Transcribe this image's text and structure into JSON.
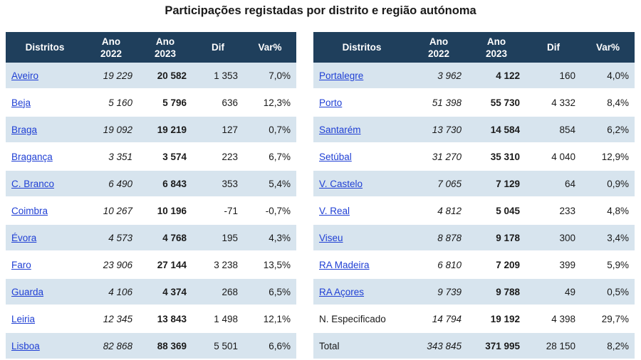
{
  "title": "Participações registadas por distrito e região autónoma",
  "headers": {
    "district": "Distritos",
    "y2022_a": "Ano",
    "y2022_b": "2022",
    "y2023_a": "Ano",
    "y2023_b": "2023",
    "dif": "Dif",
    "var": "Var%"
  },
  "left_rows": [
    {
      "name": "Aveiro",
      "y2022": "19 229",
      "y2023": "20 582",
      "dif": "1 353",
      "var": "7,0%"
    },
    {
      "name": "Beja",
      "y2022": "5 160",
      "y2023": "5 796",
      "dif": "636",
      "var": "12,3%"
    },
    {
      "name": "Braga",
      "y2022": "19 092",
      "y2023": "19 219",
      "dif": "127",
      "var": "0,7%"
    },
    {
      "name": "Bragança",
      "y2022": "3 351",
      "y2023": "3 574",
      "dif": "223",
      "var": "6,7%"
    },
    {
      "name": "C. Branco",
      "y2022": "6 490",
      "y2023": "6 843",
      "dif": "353",
      "var": "5,4%"
    },
    {
      "name": "Coimbra",
      "y2022": "10 267",
      "y2023": "10 196",
      "dif": "-71",
      "var": "-0,7%"
    },
    {
      "name": "Évora",
      "y2022": "4 573",
      "y2023": "4 768",
      "dif": "195",
      "var": "4,3%"
    },
    {
      "name": "Faro",
      "y2022": "23 906",
      "y2023": "27 144",
      "dif": "3 238",
      "var": "13,5%"
    },
    {
      "name": "Guarda",
      "y2022": "4 106",
      "y2023": "4 374",
      "dif": "268",
      "var": "6,5%"
    },
    {
      "name": "Leiria",
      "y2022": "12 345",
      "y2023": "13 843",
      "dif": "1 498",
      "var": "12,1%"
    },
    {
      "name": "Lisboa",
      "y2022": "82 868",
      "y2023": "88 369",
      "dif": "5 501",
      "var": "6,6%"
    }
  ],
  "right_rows": [
    {
      "name": "Portalegre",
      "y2022": "3 962",
      "y2023": "4 122",
      "dif": "160",
      "var": "4,0%"
    },
    {
      "name": "Porto",
      "y2022": "51 398",
      "y2023": "55 730",
      "dif": "4 332",
      "var": "8,4%"
    },
    {
      "name": "Santarém",
      "y2022": "13 730",
      "y2023": "14 584",
      "dif": "854",
      "var": "6,2%"
    },
    {
      "name": "Setúbal",
      "y2022": "31 270",
      "y2023": "35 310",
      "dif": "4 040",
      "var": "12,9%"
    },
    {
      "name": "V. Castelo",
      "y2022": "7 065",
      "y2023": "7 129",
      "dif": "64",
      "var": "0,9%"
    },
    {
      "name": "V. Real",
      "y2022": "4 812",
      "y2023": "5 045",
      "dif": "233",
      "var": "4,8%"
    },
    {
      "name": "Viseu",
      "y2022": "8 878",
      "y2023": "9 178",
      "dif": "300",
      "var": "3,4%"
    },
    {
      "name": "RA Madeira",
      "y2022": "6 810",
      "y2023": "7 209",
      "dif": "399",
      "var": "5,9%"
    },
    {
      "name": "RA Açores",
      "y2022": "9 739",
      "y2023": "9 788",
      "dif": "49",
      "var": "0,5%"
    },
    {
      "name": "N. Especificado",
      "y2022": "14 794",
      "y2023": "19 192",
      "dif": "4 398",
      "var": "29,7%",
      "plain": true
    },
    {
      "name": "Total",
      "y2022": "343 845",
      "y2023": "371 995",
      "dif": "28 150",
      "var": "8,2%",
      "plain": true
    }
  ],
  "colors": {
    "header_bg": "#1f3f5c",
    "row_alt_bg": "#d7e4ee",
    "link": "#1f3fd4"
  }
}
